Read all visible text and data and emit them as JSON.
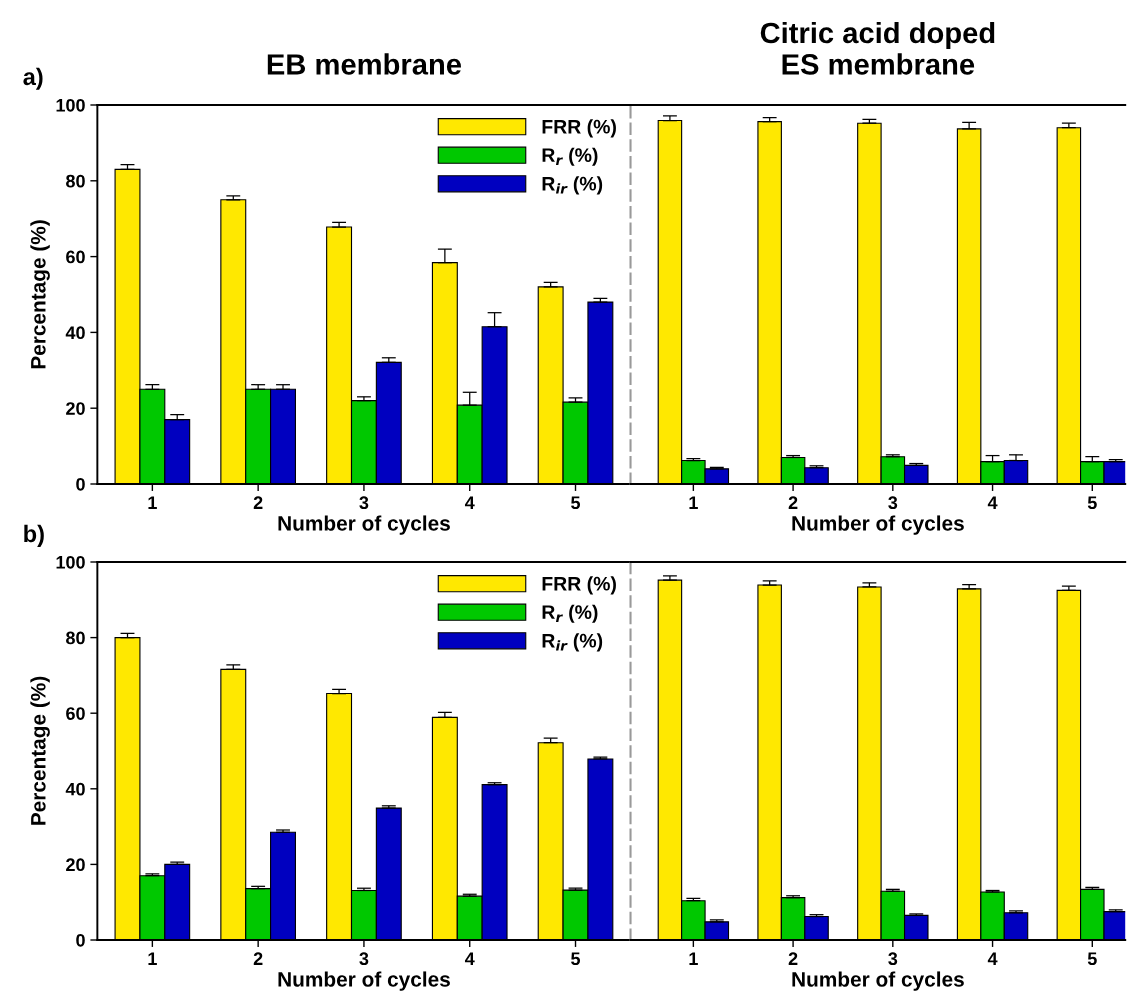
{
  "chart_data": [
    {
      "type": "bar",
      "title": "EB membrane",
      "xlabel": "Number of cycles",
      "ylabel": "Percentage (%)",
      "annotations": [
        "a)"
      ],
      "categories": [
        "1",
        "2",
        "3",
        "4",
        "5"
      ],
      "ylim": [
        0,
        100
      ],
      "yticks": [
        0,
        20,
        40,
        60,
        80,
        100
      ],
      "legend": "top right",
      "series": [
        {
          "name": "FRR (%)",
          "color": "#ffe800",
          "values": [
            83,
            75,
            67.8,
            58.4,
            52
          ],
          "errors": [
            [
              83,
              84.3
            ],
            [
              75,
              76
            ],
            [
              67.8,
              69
            ],
            [
              58.4,
              62
            ],
            [
              52,
              53.2
            ]
          ]
        },
        {
          "name": "R$_{r}$ (%)",
          "color": "#00c800",
          "values": [
            25,
            25,
            22,
            20.8,
            21.6
          ],
          "errors": [
            [
              25,
              26.2
            ],
            [
              25,
              26.2
            ],
            [
              22,
              23
            ],
            [
              20.8,
              24.2
            ],
            [
              21.6,
              22.7
            ]
          ]
        },
        {
          "name": "R$_{ir}$ (%)",
          "color": "#0000c0",
          "values": [
            17,
            25,
            32.1,
            41.5,
            48
          ],
          "errors": [
            [
              17,
              18.3
            ],
            [
              25,
              26.2
            ],
            [
              32.1,
              33.3
            ],
            [
              41.5,
              45.2
            ],
            [
              48,
              49
            ]
          ]
        }
      ]
    },
    {
      "type": "bar",
      "title": "Citric acid doped\nES membrane",
      "xlabel": "Number of cycles",
      "categories": [
        "1",
        "2",
        "3",
        "4",
        "5"
      ],
      "ylim": [
        0,
        100
      ],
      "tick_labels": "x",
      "series": [
        {
          "color": "#ffe800",
          "values": [
            95.9,
            95.6,
            95.2,
            93.7,
            94.0
          ],
          "errors": [
            [
              95.9,
              97.1
            ],
            [
              95.6,
              96.7
            ],
            [
              95.2,
              96.2
            ],
            [
              93.7,
              95.4
            ],
            [
              94.0,
              95.2
            ]
          ]
        },
        {
          "color": "#00c800",
          "values": [
            6.2,
            7.0,
            7.2,
            5.9,
            5.9
          ],
          "errors": [
            [
              6.2,
              6.7
            ],
            [
              7.0,
              7.5
            ],
            [
              7.2,
              7.7
            ],
            [
              5.9,
              7.5
            ],
            [
              5.9,
              7.2
            ]
          ]
        },
        {
          "color": "#0000c0",
          "values": [
            4.0,
            4.3,
            4.9,
            6.2,
            5.9
          ],
          "errors": [
            [
              4.0,
              4.4
            ],
            [
              4.3,
              4.8
            ],
            [
              4.9,
              5.4
            ],
            [
              6.2,
              7.7
            ],
            [
              5.9,
              6.4
            ]
          ]
        }
      ]
    },
    {
      "type": "bar",
      "xlabel": "Number of cycles",
      "ylabel": "Percentage (%)",
      "annotations": [
        "b)"
      ],
      "categories": [
        "1",
        "2",
        "3",
        "4",
        "5"
      ],
      "ylim": [
        0,
        100
      ],
      "yticks": [
        0,
        20,
        40,
        60,
        80,
        100
      ],
      "legend": "top right",
      "series": [
        {
          "name": "FRR (%)",
          "color": "#ffe800",
          "values": [
            80.0,
            71.6,
            65.2,
            58.9,
            52.2
          ],
          "errors": [
            [
              80.0,
              81.1
            ],
            [
              71.6,
              72.8
            ],
            [
              65.2,
              66.3
            ],
            [
              58.9,
              60.2
            ],
            [
              52.2,
              53.4
            ]
          ]
        },
        {
          "name": "R$_{r}$ (%)",
          "color": "#00c800",
          "values": [
            17.0,
            13.6,
            13.1,
            11.6,
            13.2
          ],
          "errors": [
            [
              17.0,
              17.5
            ],
            [
              13.6,
              14.2
            ],
            [
              13.1,
              13.7
            ],
            [
              11.6,
              12.1
            ],
            [
              13.2,
              13.7
            ]
          ]
        },
        {
          "name": "R$_{ir}$ (%)",
          "color": "#0000c0",
          "values": [
            20.0,
            28.5,
            34.9,
            41.1,
            47.9
          ],
          "errors": [
            [
              20.0,
              20.6
            ],
            [
              28.5,
              29.1
            ],
            [
              34.9,
              35.5
            ],
            [
              41.1,
              41.6
            ],
            [
              47.9,
              48.4
            ]
          ]
        }
      ]
    },
    {
      "type": "bar",
      "xlabel": "Number of cycles",
      "categories": [
        "1",
        "2",
        "3",
        "4",
        "5"
      ],
      "ylim": [
        0,
        100
      ],
      "tick_labels": "x",
      "series": [
        {
          "color": "#ffe800",
          "values": [
            95.2,
            93.9,
            93.4,
            92.9,
            92.5
          ],
          "errors": [
            [
              95.2,
              96.3
            ],
            [
              93.9,
              95.0
            ],
            [
              93.4,
              94.5
            ],
            [
              92.9,
              94.0
            ],
            [
              92.5,
              93.6
            ]
          ]
        },
        {
          "color": "#00c800",
          "values": [
            10.4,
            11.2,
            12.9,
            12.7,
            13.4
          ],
          "errors": [
            [
              10.4,
              11.0
            ],
            [
              11.2,
              11.7
            ],
            [
              12.9,
              13.4
            ],
            [
              12.7,
              13.1
            ],
            [
              13.4,
              13.9
            ]
          ]
        },
        {
          "color": "#0000c0",
          "values": [
            4.8,
            6.2,
            6.5,
            7.2,
            7.5
          ],
          "errors": [
            [
              4.8,
              5.3
            ],
            [
              6.2,
              6.7
            ],
            [
              6.5,
              6.9
            ],
            [
              7.2,
              7.7
            ],
            [
              7.5,
              8.0
            ]
          ]
        }
      ]
    }
  ]
}
